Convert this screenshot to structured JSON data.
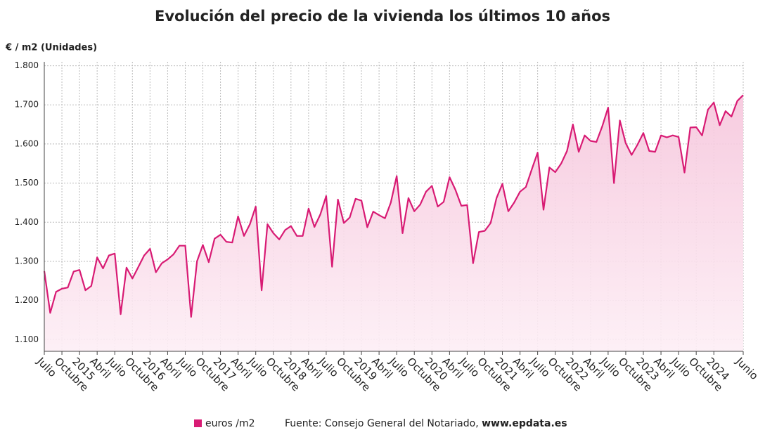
{
  "chart_data": {
    "type": "line",
    "title": "Evolución del precio de la vivienda los últimos 10 años",
    "y_label": "€ / m2 (Unidades)",
    "categories": [
      "Julio",
      null,
      null,
      "Octubre",
      null,
      null,
      "2015",
      null,
      null,
      "Abril",
      null,
      null,
      "Julio",
      null,
      null,
      "Octubre",
      null,
      null,
      "2016",
      null,
      null,
      "Abril",
      null,
      null,
      "Julio",
      null,
      null,
      "Octubre",
      null,
      null,
      "2017",
      null,
      null,
      "Abril",
      null,
      null,
      "Julio",
      null,
      null,
      "Octubre",
      null,
      null,
      "2018",
      null,
      null,
      "Abril",
      null,
      null,
      "Julio",
      null,
      null,
      "Octubre",
      null,
      null,
      "2019",
      null,
      null,
      "Abril",
      null,
      null,
      "Julio",
      null,
      null,
      "Octubre",
      null,
      null,
      "2020",
      null,
      null,
      "Abril",
      null,
      null,
      "Julio",
      null,
      null,
      "Octubre",
      null,
      null,
      "2021",
      null,
      null,
      "Abril",
      null,
      null,
      "Julio",
      null,
      null,
      "Octubre",
      null,
      null,
      "2022",
      null,
      null,
      "Abril",
      null,
      null,
      "Julio",
      null,
      null,
      "Octubre",
      null,
      null,
      "2023",
      null,
      null,
      "Abril",
      null,
      null,
      "Julio",
      null,
      null,
      "Octubre",
      null,
      null,
      "2024",
      null,
      null,
      null,
      null,
      "Junio"
    ],
    "series": [
      {
        "name": "euros /m2",
        "color": "#d81b74",
        "values": [
          1275,
          1168,
          1222,
          1230,
          1233,
          1274,
          1278,
          1226,
          1237,
          1310,
          1282,
          1315,
          1320,
          1165,
          1284,
          1256,
          1285,
          1315,
          1332,
          1272,
          1295,
          1305,
          1318,
          1340,
          1340,
          1158,
          1300,
          1342,
          1298,
          1358,
          1368,
          1350,
          1348,
          1415,
          1365,
          1395,
          1440,
          1226,
          1395,
          1372,
          1356,
          1380,
          1390,
          1365,
          1365,
          1435,
          1388,
          1420,
          1467,
          1286,
          1458,
          1398,
          1412,
          1460,
          1455,
          1387,
          1427,
          1418,
          1410,
          1450,
          1518,
          1372,
          1462,
          1428,
          1445,
          1478,
          1493,
          1440,
          1452,
          1515,
          1483,
          1442,
          1444,
          1295,
          1375,
          1378,
          1398,
          1462,
          1498,
          1428,
          1450,
          1478,
          1490,
          1535,
          1578,
          1432,
          1540,
          1528,
          1550,
          1582,
          1650,
          1580,
          1622,
          1608,
          1605,
          1645,
          1693,
          1500,
          1660,
          1602,
          1572,
          1598,
          1628,
          1582,
          1580,
          1622,
          1617,
          1622,
          1618,
          1527,
          1642,
          1643,
          1622,
          1688,
          1706,
          1648,
          1684,
          1670,
          1710,
          1725
        ]
      }
    ],
    "ylim": [
      1070,
      1810
    ],
    "yticks": [
      {
        "value": 1100,
        "label": "1.100"
      },
      {
        "value": 1200,
        "label": "1.200"
      },
      {
        "value": 1300,
        "label": "1.300"
      },
      {
        "value": 1400,
        "label": "1.400"
      },
      {
        "value": 1500,
        "label": "1.500"
      },
      {
        "value": 1600,
        "label": "1.600"
      },
      {
        "value": 1700,
        "label": "1.700"
      },
      {
        "value": 1800,
        "label": "1.800"
      }
    ],
    "grid": true,
    "source_label": "Fuente: Consejo General del Notariado,",
    "source_link": "www.epdata.es"
  }
}
